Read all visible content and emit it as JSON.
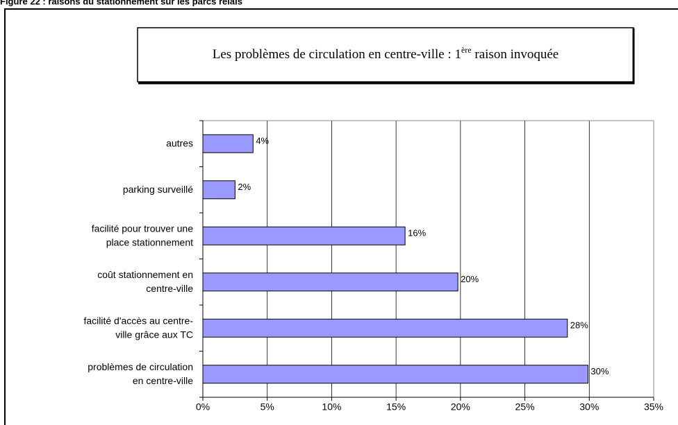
{
  "caption": "Figure 22 : raisons du stationnement sur les parcs relais",
  "chart_data": {
    "type": "barh",
    "title": [
      "Les problèmes de circulation en centre-ville : 1",
      "ère",
      " raison invoquée"
    ],
    "categories": [
      [
        "autres"
      ],
      [
        "parking surveillé"
      ],
      [
        "facilité pour trouver une",
        "place stationnement"
      ],
      [
        "coût stationnement en",
        "centre-ville"
      ],
      [
        "facilité d'accès au centre-",
        "ville grâce aux TC"
      ],
      [
        "problèmes de circulation",
        "en centre-ville"
      ]
    ],
    "values": [
      3.9,
      2.5,
      15.7,
      19.8,
      28.3,
      29.9
    ],
    "value_labels": [
      "4%",
      "2%",
      "16%",
      "20%",
      "28%",
      "30%"
    ],
    "color": "#9999ff",
    "xlim": [
      0,
      35
    ],
    "xticks": [
      {
        "value": 0,
        "label": "0%"
      },
      {
        "value": 5,
        "label": "5%"
      },
      {
        "value": 10,
        "label": "10%"
      },
      {
        "value": 15,
        "label": "15%"
      },
      {
        "value": 20,
        "label": "20%"
      },
      {
        "value": 25,
        "label": "25%"
      },
      {
        "value": 30,
        "label": "30%"
      },
      {
        "value": 35,
        "label": "35%"
      }
    ],
    "grid": true
  }
}
